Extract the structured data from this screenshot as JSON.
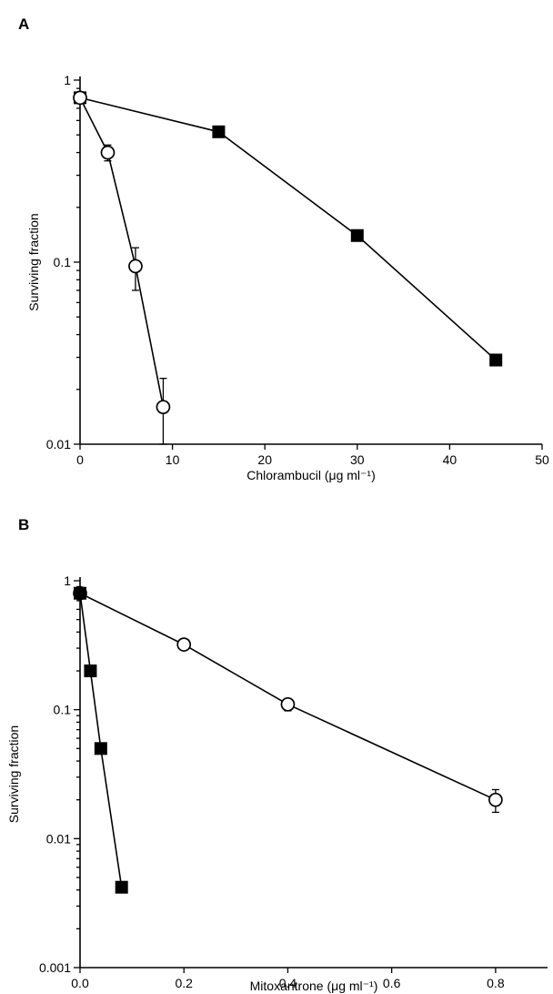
{
  "chart_data": [
    {
      "panel": "A",
      "type": "line",
      "xlabel": "Chlorambucil (μg ml⁻¹)",
      "ylabel": "Surviving fraction",
      "xlim": [
        0,
        50
      ],
      "ylim": [
        0.01,
        1
      ],
      "yscale": "log",
      "x_ticks": [
        0,
        10,
        20,
        30,
        40,
        50
      ],
      "x_tick_labels": [
        "0",
        "10",
        "20",
        "30",
        "40",
        "50"
      ],
      "y_ticks": [
        1,
        0.1,
        0.01
      ],
      "y_tick_labels": [
        "1",
        "0.1",
        "0.01"
      ],
      "grid": false,
      "series": [
        {
          "marker": "filled-square",
          "x": [
            0,
            15,
            30,
            45
          ],
          "y": [
            0.8,
            0.52,
            0.14,
            0.029
          ],
          "err": [
            0,
            0,
            0,
            0
          ]
        },
        {
          "marker": "open-circle",
          "x": [
            0,
            3,
            6,
            9
          ],
          "y": [
            0.8,
            0.4,
            0.095,
            0.016
          ],
          "err": [
            0,
            0.04,
            0.025,
            0.007
          ]
        }
      ]
    },
    {
      "panel": "B",
      "type": "line",
      "xlabel": "Mitoxantrone (μg ml⁻¹)",
      "ylabel": "Surviving fraction",
      "xlim": [
        0,
        0.9
      ],
      "ylim": [
        0.001,
        1
      ],
      "yscale": "log",
      "x_ticks": [
        0,
        0.2,
        0.4,
        0.6,
        0.8
      ],
      "x_tick_labels": [
        "0.0",
        "0.2",
        "0.4",
        "0.6",
        "0.8"
      ],
      "y_ticks": [
        1,
        0.1,
        0.01,
        0.001
      ],
      "y_tick_labels": [
        "1",
        "0.1",
        "0.01",
        "0.001"
      ],
      "grid": false,
      "series": [
        {
          "marker": "open-circle",
          "x": [
            0,
            0.2,
            0.4,
            0.8
          ],
          "y": [
            0.8,
            0.32,
            0.11,
            0.02
          ],
          "err": [
            0,
            0,
            0.012,
            0.004
          ]
        },
        {
          "marker": "filled-square",
          "x": [
            0,
            0.02,
            0.04,
            0.08
          ],
          "y": [
            0.8,
            0.2,
            0.05,
            0.0042
          ],
          "err": [
            0,
            0,
            0,
            0
          ]
        }
      ]
    }
  ]
}
